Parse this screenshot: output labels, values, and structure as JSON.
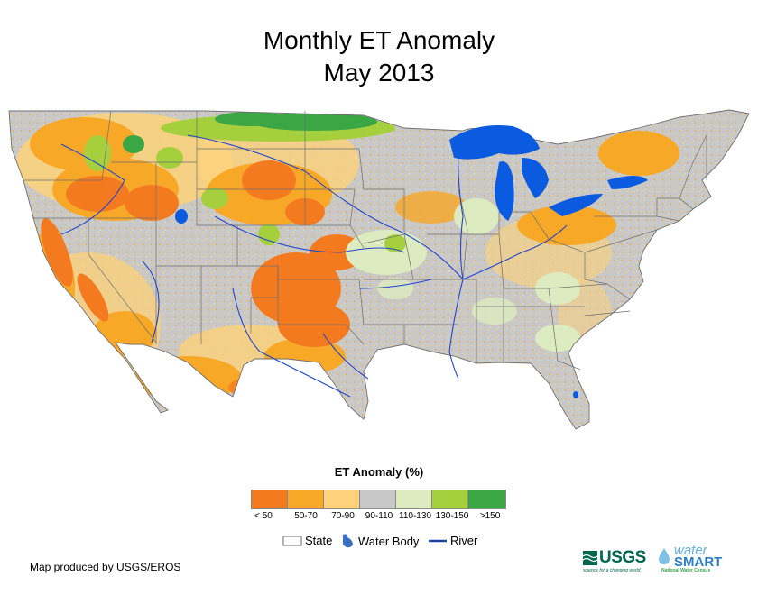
{
  "title": {
    "line1": "Monthly ET Anomaly",
    "line2": "May 2013"
  },
  "legend": {
    "title": "ET Anomaly (%)",
    "classes": [
      {
        "label": "< 50",
        "color": "#f47a20"
      },
      {
        "label": "50-70",
        "color": "#f7a827"
      },
      {
        "label": "70-90",
        "color": "#fdd27a"
      },
      {
        "label": "90-110",
        "color": "#c8c8c8"
      },
      {
        "label": "110-130",
        "color": "#dcebc0"
      },
      {
        "label": "130-150",
        "color": "#a6cf3e"
      },
      {
        "label": ">150",
        "color": "#3aa644"
      }
    ]
  },
  "key": {
    "state": "State",
    "water_body": "Water Body",
    "river": "River"
  },
  "colors": {
    "water": "#0a5be0",
    "river": "#2244cc",
    "state_line": "#6e6e6e",
    "background": "#c8c8c8"
  },
  "credit": "Map produced by USGS/EROS",
  "logos": {
    "usgs": "USGS",
    "usgs_tagline": "science for a changing world",
    "watersmart_water": "water",
    "watersmart_smart": "SMART",
    "watersmart_tagline": "National Water Census"
  }
}
